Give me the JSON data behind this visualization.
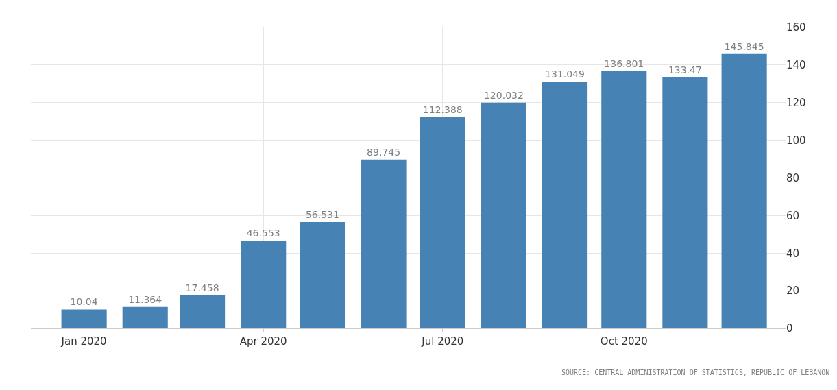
{
  "chart_data": {
    "type": "bar",
    "x": [
      "2020-01",
      "2020-02",
      "2020-03",
      "2020-04",
      "2020-05",
      "2020-06",
      "2020-07",
      "2020-08",
      "2020-09",
      "2020-10",
      "2020-11",
      "2020-12"
    ],
    "values": [
      10.04,
      11.364,
      17.458,
      46.553,
      56.531,
      89.745,
      112.388,
      120.032,
      131.049,
      136.801,
      133.47,
      145.845
    ],
    "color": "#4682b4",
    "data_labels": true,
    "xlim": [
      "2019-12-05",
      "2020-12-22"
    ],
    "xticks": [
      {
        "value": "2020-01",
        "label": "Jan 2020"
      },
      {
        "value": "2020-04",
        "label": "Apr 2020"
      },
      {
        "value": "2020-07",
        "label": "Jul 2020"
      },
      {
        "value": "2020-10",
        "label": "Oct 2020"
      }
    ],
    "ylim": [
      0,
      160
    ],
    "yticks": [
      0,
      20,
      40,
      60,
      80,
      100,
      120,
      140,
      160
    ],
    "grid": true,
    "annotations": [
      "SOURCE: CENTRAL ADMINISTRATION OF STATISTICS, REPUBLIC OF LEBANON"
    ]
  }
}
